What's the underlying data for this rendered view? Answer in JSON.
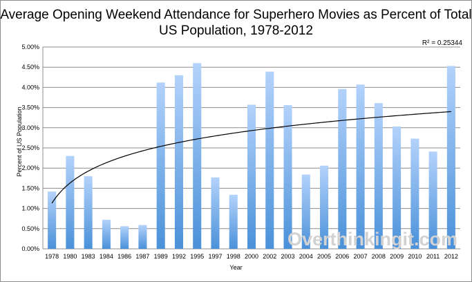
{
  "chart_data": {
    "type": "bar",
    "title_line1": "Average Opening Weekend Attendance for Superhero Movies as Percent of Total",
    "title_line2": "US Population, 1978-2012",
    "xlabel": "Year",
    "ylabel": "Percent of US Population",
    "annotation": "R² = 0.25344",
    "watermark": "Overthinkingit.com",
    "categories": [
      "1978",
      "1980",
      "1983",
      "1984",
      "1986",
      "1987",
      "1989",
      "1992",
      "1995",
      "1997",
      "1998",
      "2000",
      "2002",
      "2003",
      "2004",
      "2005",
      "2006",
      "2007",
      "2008",
      "2009",
      "2010",
      "2011",
      "2012"
    ],
    "values": [
      1.42,
      2.3,
      1.8,
      0.72,
      0.56,
      0.59,
      4.12,
      4.3,
      4.6,
      1.77,
      1.34,
      3.57,
      4.39,
      3.56,
      1.84,
      2.06,
      3.96,
      4.07,
      3.61,
      3.03,
      2.73,
      2.41,
      4.53
    ],
    "ylim": [
      0,
      5
    ],
    "yticks": [
      "0.00%",
      "0.50%",
      "1.00%",
      "1.50%",
      "2.00%",
      "2.50%",
      "3.00%",
      "3.50%",
      "4.00%",
      "4.50%",
      "5.00%"
    ],
    "trendline": {
      "type": "logarithmic",
      "start": 1.13,
      "end": 3.4
    },
    "grid": true,
    "bar_color_top": "#b3d2fb",
    "bar_color_bottom": "#4a91d9"
  }
}
